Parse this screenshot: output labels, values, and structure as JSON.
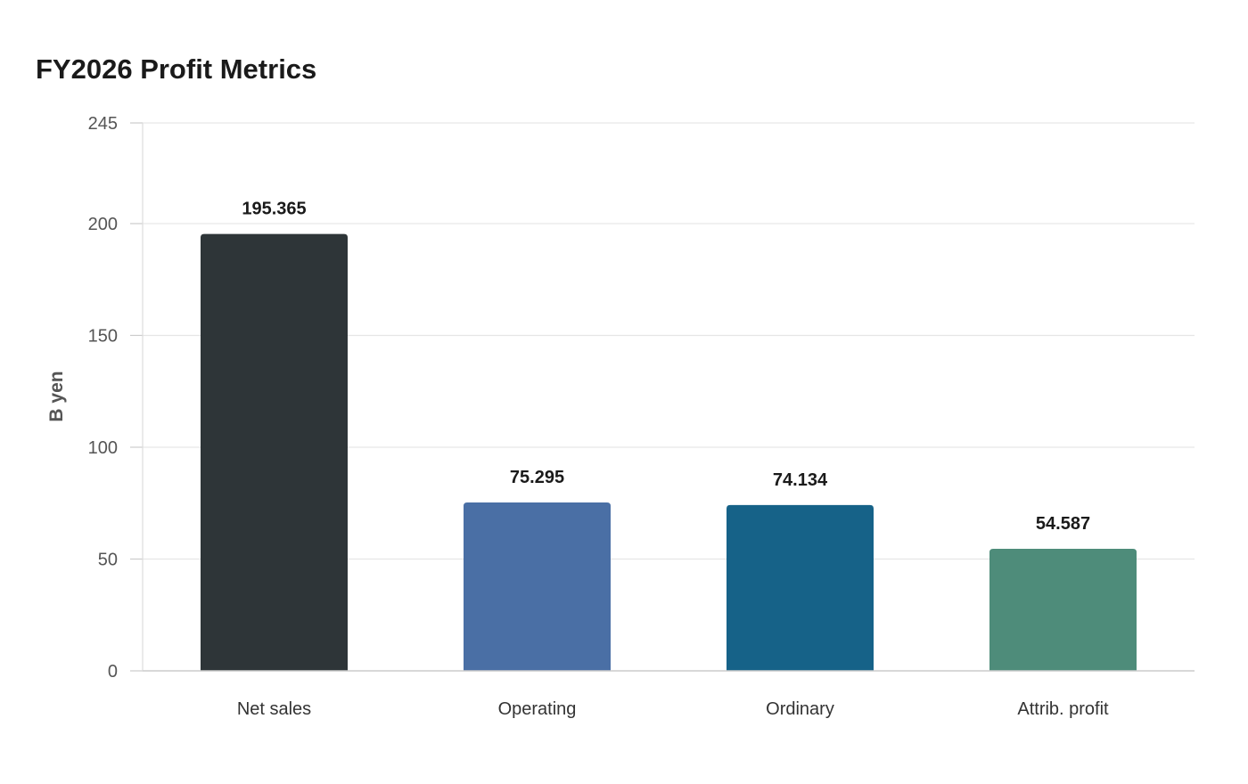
{
  "chart_data": {
    "type": "bar",
    "title": "FY2026 Profit Metrics",
    "xlabel": "",
    "ylabel": "B yen",
    "categories": [
      "Net sales",
      "Operating",
      "Ordinary",
      "Attrib. profit"
    ],
    "values": [
      195.365,
      75.295,
      74.134,
      54.587
    ],
    "value_labels": [
      "195.365",
      "75.295",
      "74.134",
      "54.587"
    ],
    "colors": [
      "#2e3538",
      "#4a6fa5",
      "#166288",
      "#4e8c7a"
    ],
    "ylim": [
      0,
      245
    ],
    "yticks": [
      0,
      50,
      100,
      150,
      200,
      245
    ],
    "ytick_labels": [
      "0",
      "50",
      "100",
      "150",
      "200",
      "245"
    ],
    "grid": true,
    "legend": "none"
  }
}
